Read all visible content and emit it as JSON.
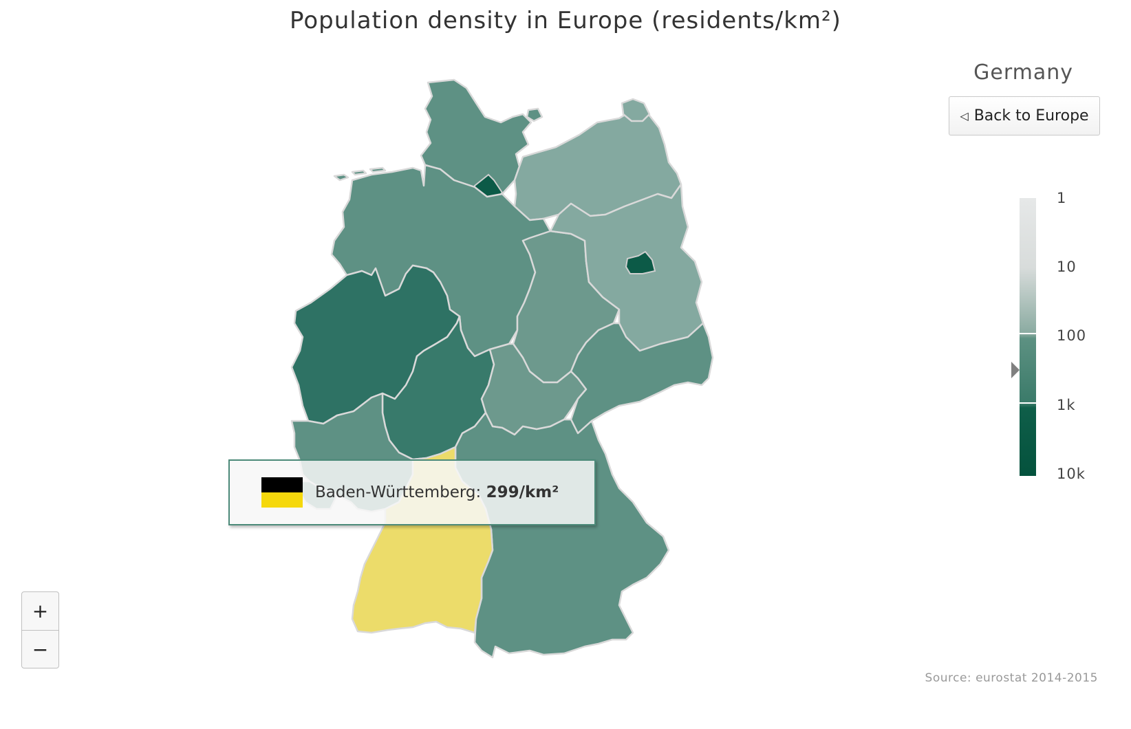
{
  "title": "Population density in Europe (residents/km²)",
  "drilldown": {
    "country": "Germany",
    "back_button": "Back to Europe",
    "back_icon": "triangle-left-icon"
  },
  "legend": {
    "labels": [
      "1",
      "10",
      "100",
      "1k",
      "10k"
    ],
    "scale": "logarithmic",
    "color_min": "#e6e8e8",
    "color_max": "#04523d",
    "hover_value": 299
  },
  "tooltip": {
    "region": "Baden-Württemberg",
    "separator": ":",
    "value": "299/km²",
    "flag_colors": [
      "#000000",
      "#f5d80c"
    ]
  },
  "zoom": {
    "in_label": "+",
    "out_label": "−"
  },
  "source": "Source: eurostat 2014-2015",
  "colors": {
    "highlight": "#ecdc6a",
    "low_density": "#84a9a0",
    "mid_density": "#5e9184",
    "high_density": "#2e7264",
    "city_state": "#0c5a47",
    "border": "#d9d9d9"
  }
}
